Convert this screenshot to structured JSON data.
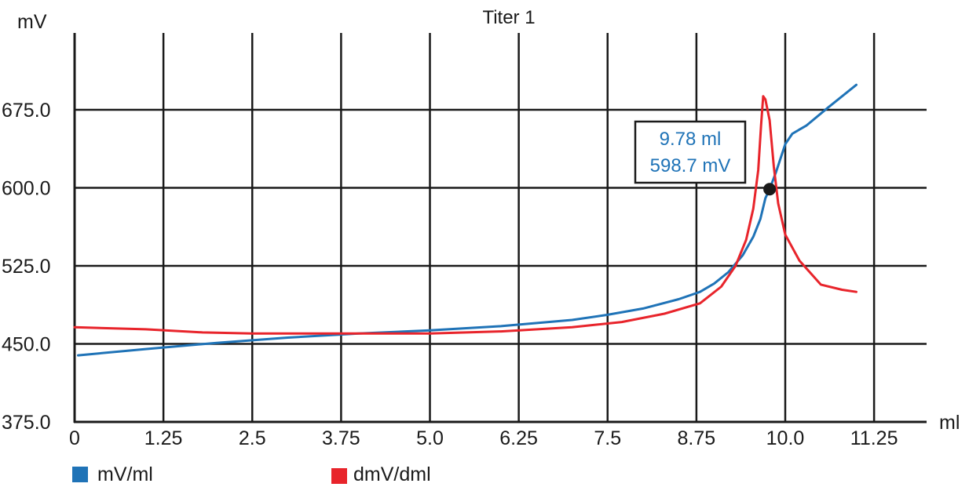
{
  "chart_data": {
    "type": "line",
    "title": "Titer 1",
    "ylabel": "mV",
    "xlabel": "ml",
    "xlim": [
      0,
      12
    ],
    "ylim": [
      375,
      700
    ],
    "x_ticks": [
      0,
      1.25,
      2.5,
      3.75,
      5.0,
      6.25,
      7.5,
      8.75,
      10.0,
      11.25
    ],
    "x_tick_labels": [
      "0",
      "1.25",
      "2.5",
      "3.75",
      "5.0",
      "6.25",
      "7.5",
      "8.75",
      "10.0",
      "11.25"
    ],
    "y_ticks": [
      375,
      450,
      525,
      600,
      675
    ],
    "y_tick_labels": [
      "375.0",
      "450.0",
      "525.0",
      "600.0",
      "675.0"
    ],
    "grid": true,
    "legend_position": "bottom",
    "series": [
      {
        "name": "mV/ml",
        "color": "#1f73b7",
        "points": [
          [
            0.05,
            439
          ],
          [
            1.0,
            445
          ],
          [
            2.0,
            451
          ],
          [
            3.0,
            456
          ],
          [
            4.0,
            460
          ],
          [
            5.0,
            463
          ],
          [
            6.0,
            467
          ],
          [
            7.0,
            473
          ],
          [
            7.5,
            478
          ],
          [
            8.0,
            484
          ],
          [
            8.5,
            493
          ],
          [
            8.8,
            500
          ],
          [
            9.0,
            508
          ],
          [
            9.2,
            519
          ],
          [
            9.4,
            535
          ],
          [
            9.55,
            553
          ],
          [
            9.65,
            570
          ],
          [
            9.72,
            590
          ],
          [
            9.78,
            598.7
          ],
          [
            9.87,
            615
          ],
          [
            10.0,
            642
          ],
          [
            10.1,
            652
          ],
          [
            10.3,
            660
          ],
          [
            10.6,
            677
          ],
          [
            11.0,
            699
          ]
        ]
      },
      {
        "name": "dmV/dml",
        "color": "#e8242b",
        "points": [
          [
            0.0,
            466
          ],
          [
            1.0,
            464
          ],
          [
            1.8,
            461
          ],
          [
            2.5,
            460
          ],
          [
            3.5,
            460
          ],
          [
            5.0,
            460
          ],
          [
            6.0,
            462
          ],
          [
            7.0,
            466
          ],
          [
            7.7,
            471
          ],
          [
            8.3,
            479
          ],
          [
            8.8,
            489
          ],
          [
            9.1,
            505
          ],
          [
            9.3,
            525
          ],
          [
            9.45,
            550
          ],
          [
            9.55,
            580
          ],
          [
            9.62,
            617
          ],
          [
            9.66,
            660
          ],
          [
            9.69,
            688
          ],
          [
            9.72,
            685
          ],
          [
            9.78,
            665
          ],
          [
            9.84,
            620
          ],
          [
            9.9,
            585
          ],
          [
            10.0,
            555
          ],
          [
            10.2,
            530
          ],
          [
            10.5,
            507
          ],
          [
            10.8,
            502
          ],
          [
            11.0,
            500
          ]
        ]
      }
    ],
    "annotation": {
      "x": 9.78,
      "y": 598.7,
      "lines": [
        "9.78 ml",
        "598.7 mV"
      ]
    }
  }
}
